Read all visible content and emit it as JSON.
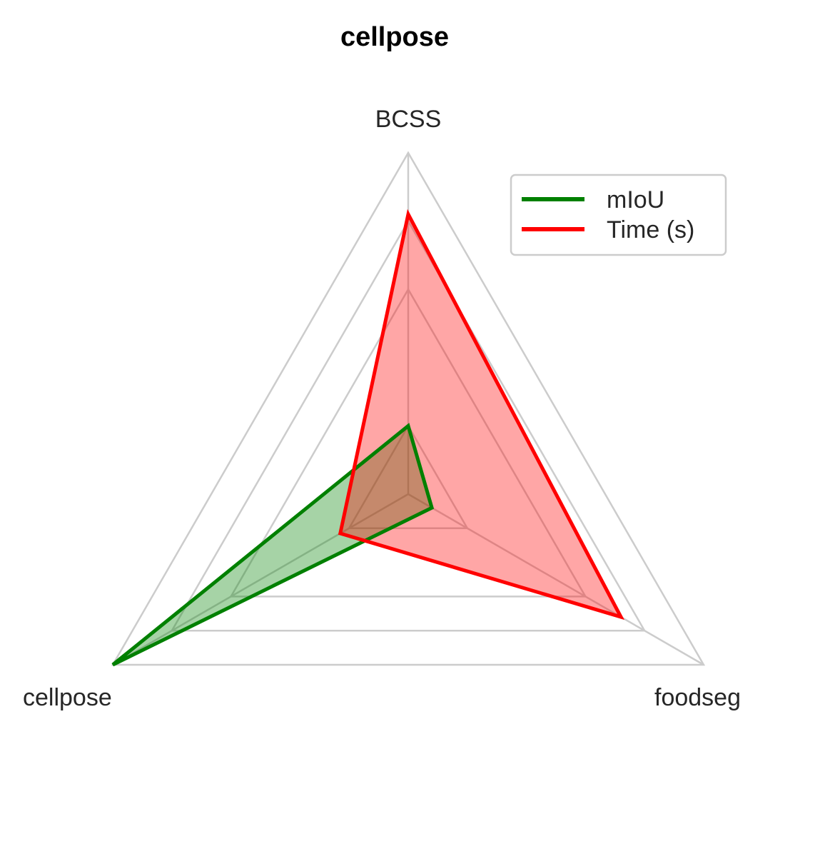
{
  "chart_data": {
    "type": "radar",
    "title": "cellpose",
    "axes": [
      "BCSS",
      "foodseg",
      "cellpose"
    ],
    "rlim": [
      0,
      1
    ],
    "rgrid": [
      0.2,
      0.6,
      0.8,
      1.0
    ],
    "grid": true,
    "legend_position": "top-right",
    "series": [
      {
        "name": "mIoU",
        "color": "#008000",
        "fill": "#008000",
        "values": [
          0.2,
          0.08,
          1.0
        ]
      },
      {
        "name": "Time (s)",
        "color": "#ff0000",
        "fill": "#ff0000",
        "values": [
          0.82,
          0.72,
          0.23
        ]
      }
    ]
  }
}
